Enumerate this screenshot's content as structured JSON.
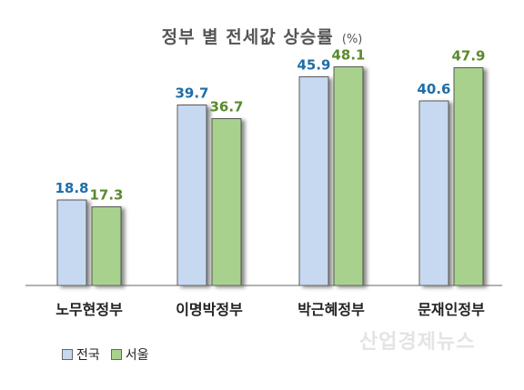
{
  "title": "정부 별 전세값 상승률",
  "title_unit": "(%)",
  "watermark": "산업경제뉴스",
  "colors": {
    "series1": "#c6d9f1",
    "series1_label": "#1f6ea8",
    "series2": "#a9d18e",
    "series2_label": "#5a8a2e",
    "title": "#555555"
  },
  "chart_data": {
    "type": "bar",
    "title": "정부 별 전세값 상승률",
    "categories": [
      "노무현정부",
      "이명박정부",
      "박근혜정부",
      "문재인정부"
    ],
    "series": [
      {
        "name": "전국",
        "values": [
          18.8,
          39.7,
          45.9,
          40.6
        ]
      },
      {
        "name": "서울",
        "values": [
          17.3,
          36.7,
          48.1,
          47.9
        ]
      }
    ],
    "ylim": [
      0,
      50
    ],
    "grid": false,
    "legend": "bottom-left"
  },
  "legend": [
    {
      "label": "전국"
    },
    {
      "label": "서울"
    }
  ]
}
